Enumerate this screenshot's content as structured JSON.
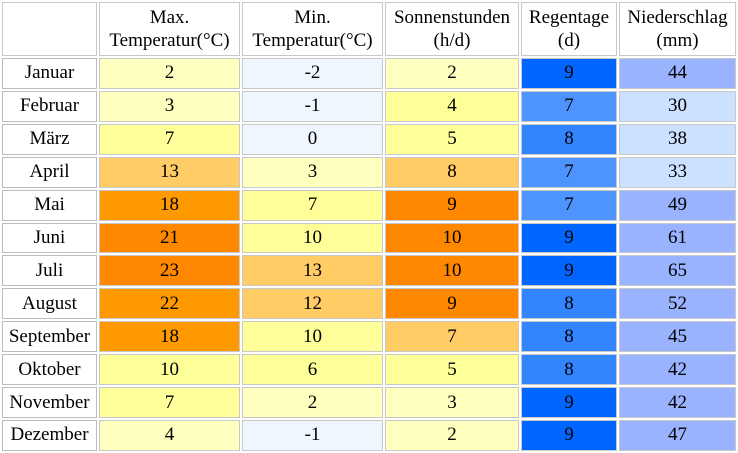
{
  "headers": {
    "month": "",
    "max_temp": [
      "Max.",
      "Temperatur(°C)"
    ],
    "min_temp": [
      "Min.",
      "Temperatur(°C)"
    ],
    "sunshine": [
      "Sonnenstunden",
      "(h/d)"
    ],
    "rain_days": [
      "Regentage",
      "(d)"
    ],
    "precipitation": [
      "Niederschlag",
      "(mm)"
    ]
  },
  "rows": [
    {
      "month": "Januar",
      "max": "2",
      "min": "-2",
      "sun": "2",
      "rain": "9",
      "prec": "44"
    },
    {
      "month": "Februar",
      "max": "3",
      "min": "-1",
      "sun": "4",
      "rain": "7",
      "prec": "30"
    },
    {
      "month": "März",
      "max": "7",
      "min": "0",
      "sun": "5",
      "rain": "8",
      "prec": "38"
    },
    {
      "month": "April",
      "max": "13",
      "min": "3",
      "sun": "8",
      "rain": "7",
      "prec": "33"
    },
    {
      "month": "Mai",
      "max": "18",
      "min": "7",
      "sun": "9",
      "rain": "7",
      "prec": "49"
    },
    {
      "month": "Juni",
      "max": "21",
      "min": "10",
      "sun": "10",
      "rain": "9",
      "prec": "61"
    },
    {
      "month": "Juli",
      "max": "23",
      "min": "13",
      "sun": "10",
      "rain": "9",
      "prec": "65"
    },
    {
      "month": "August",
      "max": "22",
      "min": "12",
      "sun": "9",
      "rain": "8",
      "prec": "52"
    },
    {
      "month": "September",
      "max": "18",
      "min": "10",
      "sun": "7",
      "rain": "8",
      "prec": "45"
    },
    {
      "month": "Oktober",
      "max": "10",
      "min": "6",
      "sun": "5",
      "rain": "8",
      "prec": "42"
    },
    {
      "month": "November",
      "max": "7",
      "min": "2",
      "sun": "3",
      "rain": "9",
      "prec": "42"
    },
    {
      "month": "Dezember",
      "max": "4",
      "min": "-1",
      "sun": "2",
      "rain": "9",
      "prec": "47"
    }
  ],
  "colors": {
    "max": [
      "#ffffc0",
      "#ffffc0",
      "#ffff99",
      "#ffcc66",
      "#ff9900",
      "#ff8800",
      "#ff8800",
      "#ff9900",
      "#ff9900",
      "#ffff99",
      "#ffff99",
      "#ffffc0"
    ],
    "min": [
      "#f0f6ff",
      "#f0f6ff",
      "#f0f6ff",
      "#ffffc0",
      "#ffff99",
      "#ffff99",
      "#ffcc66",
      "#ffcc66",
      "#ffff99",
      "#ffff99",
      "#ffffc0",
      "#f0f6ff"
    ],
    "sun": [
      "#ffffc0",
      "#ffff99",
      "#ffff99",
      "#ffcc66",
      "#ff8800",
      "#ff8800",
      "#ff8800",
      "#ff8800",
      "#ffcc66",
      "#ffff99",
      "#ffffc0",
      "#ffffc0"
    ],
    "rain": [
      "#0066ff",
      "#4d94ff",
      "#3385ff",
      "#4d94ff",
      "#4d94ff",
      "#0066ff",
      "#0066ff",
      "#3385ff",
      "#3385ff",
      "#3385ff",
      "#0066ff",
      "#0066ff"
    ],
    "prec": [
      "#99b3ff",
      "#cce0ff",
      "#cce0ff",
      "#cce0ff",
      "#99b3ff",
      "#99b3ff",
      "#99b3ff",
      "#99b3ff",
      "#99b3ff",
      "#99b3ff",
      "#99b3ff",
      "#99b3ff"
    ]
  }
}
